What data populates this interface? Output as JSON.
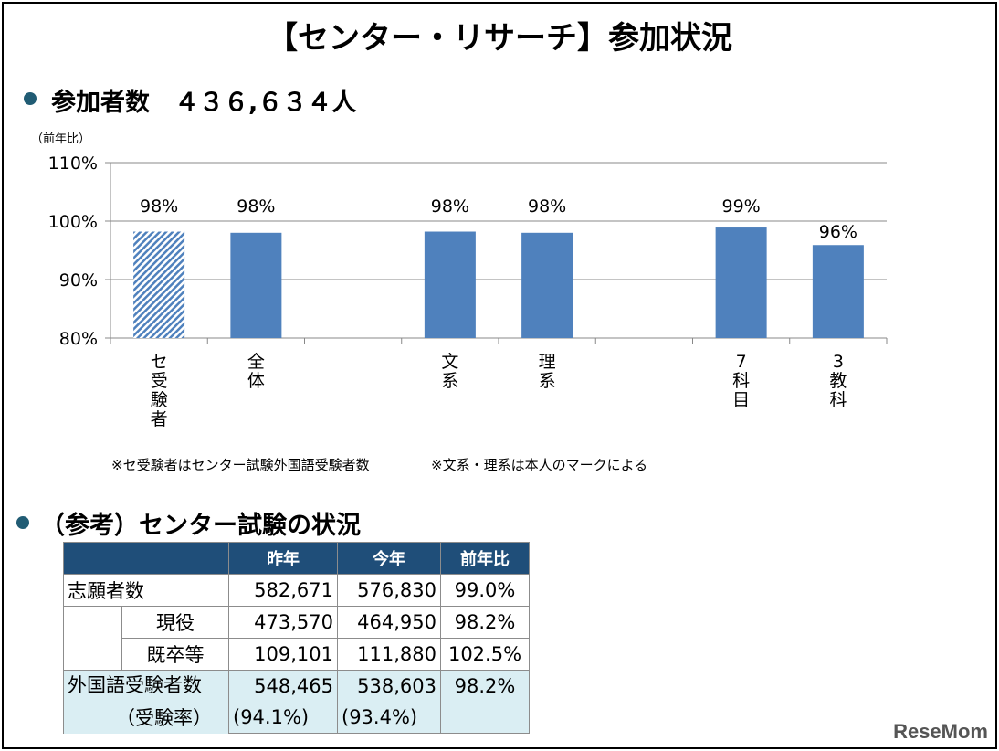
{
  "title": "【センター・リサーチ】参加状況",
  "participants_heading": "参加者数　４３６,６３４人",
  "chart_data": {
    "type": "bar",
    "ylabel": "（前年比）",
    "ylim": [
      80,
      110
    ],
    "yticks": [
      "80%",
      "90%",
      "100%",
      "110%"
    ],
    "grid": true,
    "categories": [
      "セ受験者",
      "全体",
      "",
      "文系",
      "理系",
      "",
      "7科目",
      "3教科"
    ],
    "values": [
      98.2,
      98.0,
      null,
      98.2,
      98.0,
      null,
      98.9,
      95.9
    ],
    "data_labels": [
      "98%",
      "98%",
      "",
      "98%",
      "98%",
      "",
      "99%",
      "96%"
    ],
    "hatched": [
      true,
      false,
      false,
      false,
      false,
      false,
      false,
      false
    ],
    "bar_color": "#4f81bd"
  },
  "notes": [
    "※セ受験者はセンター試験外国語受験者数",
    "※文系・理系は本人のマークによる"
  ],
  "reference_heading": "（参考）センター試験の状況",
  "table": {
    "headers": [
      "",
      "昨年",
      "今年",
      "前年比"
    ],
    "rows": [
      {
        "label": "志願者数",
        "last": "582,671",
        "this": "576,830",
        "ratio": "99.0%"
      },
      {
        "label": "現役",
        "last": "473,570",
        "this": "464,950",
        "ratio": "98.2%"
      },
      {
        "label": "既卒等",
        "last": "109,101",
        "this": "111,880",
        "ratio": "102.5%"
      },
      {
        "label": "外国語受験者数",
        "last": "548,465",
        "this": "538,603",
        "ratio": "98.2%"
      },
      {
        "label": "（受験率）",
        "last": "(94.1%)",
        "this": "(93.4%)",
        "ratio": ""
      }
    ],
    "header_color": "#1f4e79",
    "highlight_color": "#daeef3"
  },
  "logo": "ReseMom"
}
